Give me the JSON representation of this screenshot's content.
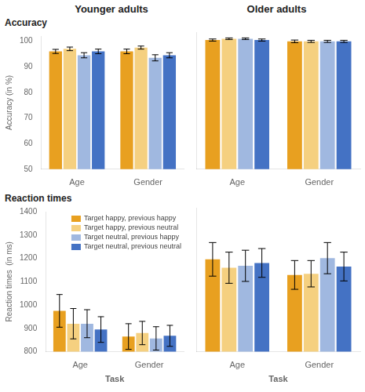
{
  "chart_data": [
    {
      "type": "bar",
      "title": "Younger adults",
      "subtitle": "Accuracy",
      "categories": [
        "Age",
        "Gender"
      ],
      "series": [
        {
          "color": "#E8A020",
          "values": [
            96.0,
            96.0
          ],
          "errors": [
            0.8,
            0.9
          ]
        },
        {
          "color": "#F5D080",
          "values": [
            97.0,
            97.5
          ],
          "errors": [
            0.7,
            0.6
          ]
        },
        {
          "color": "#A0B8E0",
          "values": [
            94.5,
            93.5
          ],
          "errors": [
            1.0,
            1.2
          ]
        },
        {
          "color": "#4472C4",
          "values": [
            96.0,
            94.5
          ],
          "errors": [
            0.9,
            1.0
          ]
        }
      ],
      "ylabel": "Accuracy (in %)",
      "ylim": [
        50,
        102
      ],
      "yticks": [
        50,
        60,
        70,
        80,
        90,
        100
      ],
      "grid": false
    },
    {
      "type": "bar",
      "title": "Older adults",
      "categories": [
        "Age",
        "Gender"
      ],
      "series": [
        {
          "color": "#E8A020",
          "values": [
            99.0,
            98.5
          ],
          "errors": [
            0.4,
            0.5
          ]
        },
        {
          "color": "#F5D080",
          "values": [
            99.5,
            98.5
          ],
          "errors": [
            0.3,
            0.4
          ]
        },
        {
          "color": "#A0B8E0",
          "values": [
            99.5,
            98.5
          ],
          "errors": [
            0.3,
            0.4
          ]
        },
        {
          "color": "#4472C4",
          "values": [
            99.0,
            98.5
          ],
          "errors": [
            0.4,
            0.4
          ]
        }
      ],
      "ylim": [
        50,
        102
      ],
      "yticks": [
        50,
        60,
        70,
        80,
        90,
        100
      ],
      "grid": false,
      "tick_labels": "x"
    },
    {
      "type": "bar",
      "subtitle": "Reaction times",
      "categories": [
        "Age",
        "Gender"
      ],
      "series": [
        {
          "name": "Target happy, previous happy",
          "color": "#E8A020",
          "values": [
            975,
            865
          ],
          "errors": [
            70,
            55
          ]
        },
        {
          "name": "Target happy, previous neutral",
          "color": "#F5D080",
          "values": [
            920,
            880
          ],
          "errors": [
            65,
            50
          ]
        },
        {
          "name": "Target neutral, previous happy",
          "color": "#A0B8E0",
          "values": [
            920,
            857
          ],
          "errors": [
            60,
            50
          ]
        },
        {
          "name": "Target neutral, previous neutral",
          "color": "#4472C4",
          "values": [
            895,
            868
          ],
          "errors": [
            55,
            45
          ]
        }
      ],
      "xlabel": "Task",
      "ylabel": "Reaction times  (in ms)",
      "ylim": [
        800,
        1400
      ],
      "yticks": [
        800,
        900,
        1000,
        1100,
        1200,
        1300,
        1400
      ],
      "grid": false,
      "legend": "upper right"
    },
    {
      "type": "bar",
      "categories": [
        "Age",
        "Gender"
      ],
      "series": [
        {
          "color": "#E8A020",
          "values": [
            1185,
            1120
          ],
          "errors": [
            70,
            60
          ]
        },
        {
          "color": "#F5D080",
          "values": [
            1150,
            1125
          ],
          "errors": [
            65,
            55
          ]
        },
        {
          "color": "#A0B8E0",
          "values": [
            1158,
            1190
          ],
          "errors": [
            65,
            65
          ]
        },
        {
          "color": "#4472C4",
          "values": [
            1170,
            1155
          ],
          "errors": [
            60,
            60
          ]
        }
      ],
      "xlabel": "Task",
      "ylim": [
        800,
        1400
      ],
      "yticks": [
        800,
        900,
        1000,
        1100,
        1200,
        1300,
        1400
      ],
      "grid": false,
      "tick_labels": "x"
    }
  ]
}
